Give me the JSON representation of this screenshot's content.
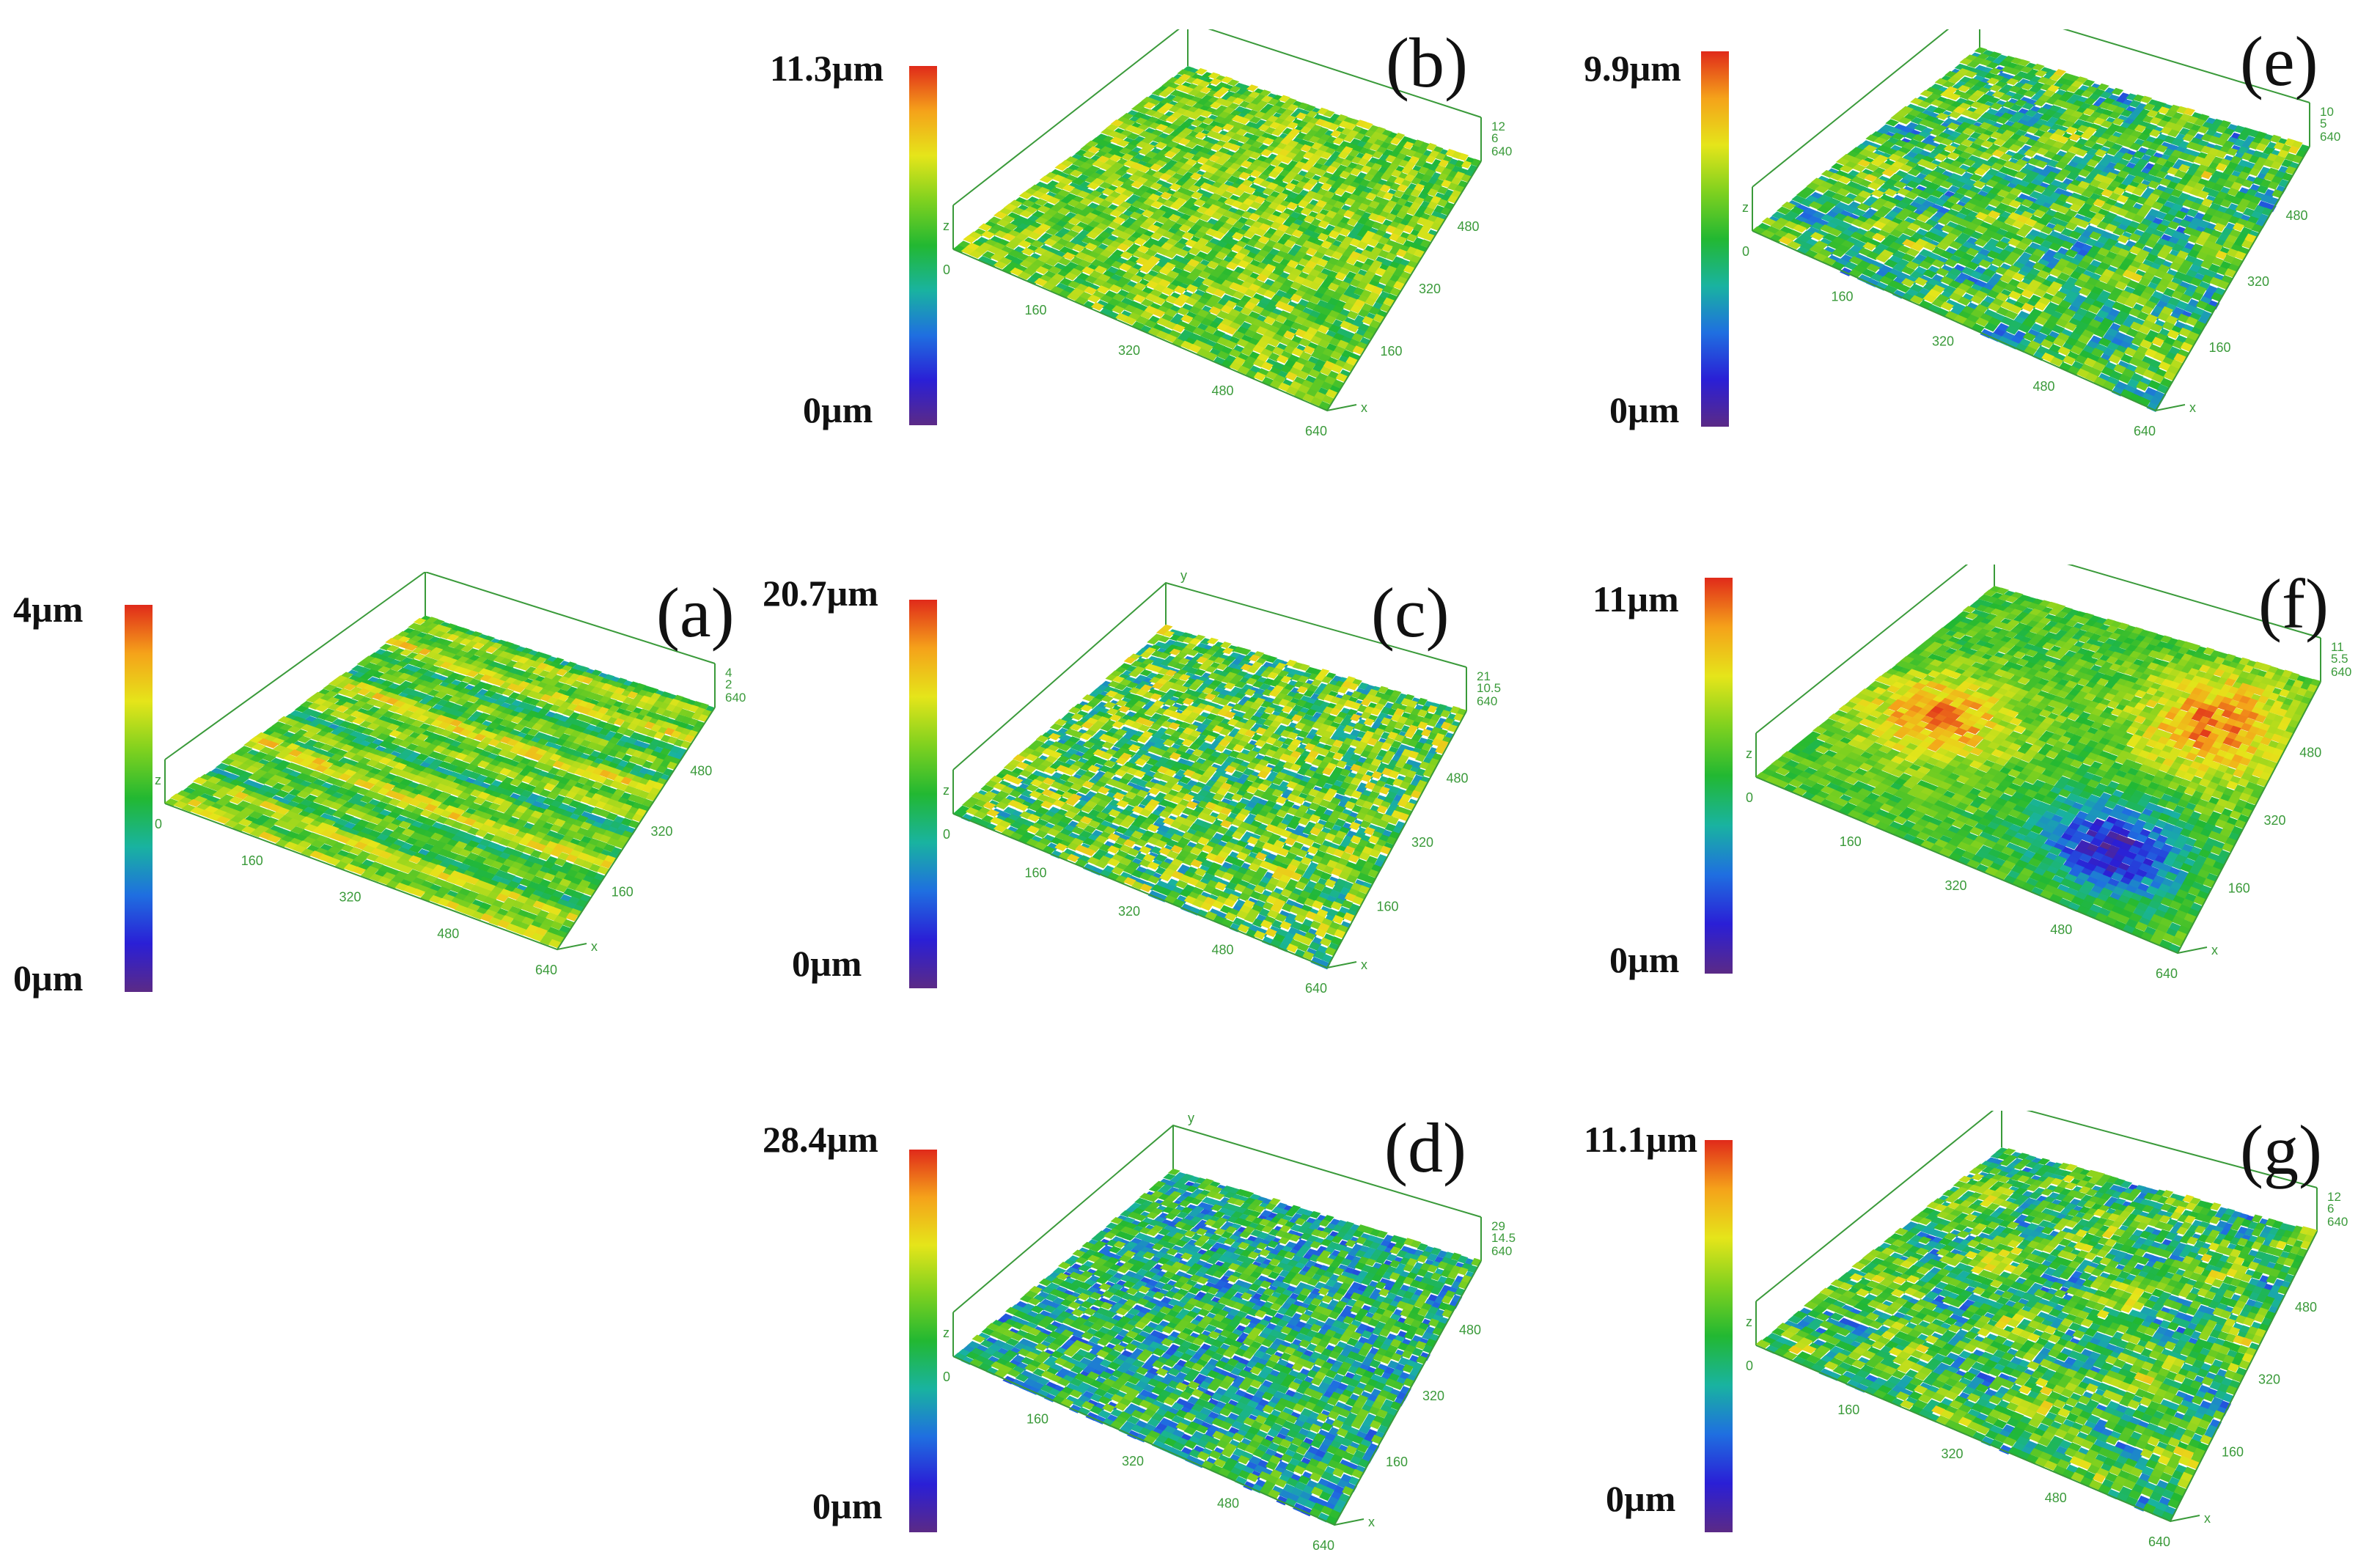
{
  "panels": [
    {
      "id": "a",
      "label": "(a)",
      "max": "4µm",
      "min": "0µm",
      "z": "z",
      "zmin": "0",
      "zticks": [
        "4",
        "2"
      ],
      "zmax": "640",
      "xticks": [
        "160",
        "320",
        "480",
        "640"
      ],
      "yticks": [
        "480",
        "320",
        "160"
      ],
      "xaxis": "x",
      "yaxis": "y",
      "pattern": "striped"
    },
    {
      "id": "b",
      "label": "(b)",
      "max": "11.3µm",
      "min": "0µm",
      "z": "z",
      "zmin": "0",
      "zticks": [
        "12",
        "6"
      ],
      "zmax": "640",
      "xticks": [
        "160",
        "320",
        "480",
        "640"
      ],
      "yticks": [
        "480",
        "320",
        "160"
      ],
      "xaxis": "x",
      "yaxis": "y",
      "pattern": "green"
    },
    {
      "id": "c",
      "label": "(c)",
      "max": "20.7µm",
      "min": "0µm",
      "z": "z",
      "zmin": "0",
      "zticks": [
        "21",
        "10.5"
      ],
      "zmax": "640",
      "xticks": [
        "160",
        "320",
        "480",
        "640"
      ],
      "yticks": [
        "480",
        "320",
        "160"
      ],
      "xaxis": "x",
      "yaxis": "y",
      "pattern": "spiky"
    },
    {
      "id": "d",
      "label": "(d)",
      "max": "28.4µm",
      "min": "0µm",
      "z": "z",
      "zmin": "0",
      "zticks": [
        "29",
        "14.5"
      ],
      "zmax": "640",
      "xticks": [
        "160",
        "320",
        "480",
        "640"
      ],
      "yticks": [
        "480",
        "320",
        "160"
      ],
      "xaxis": "x",
      "yaxis": "y",
      "pattern": "bluespiky"
    },
    {
      "id": "e",
      "label": "(e)",
      "max": "9.9µm",
      "min": "0µm",
      "z": "z",
      "zmin": "0",
      "zticks": [
        "10",
        "5"
      ],
      "zmax": "640",
      "xticks": [
        "160",
        "320",
        "480",
        "640"
      ],
      "yticks": [
        "480",
        "320",
        "160"
      ],
      "xaxis": "x",
      "yaxis": "y",
      "pattern": "mottled"
    },
    {
      "id": "f",
      "label": "(f)",
      "max": "11µm",
      "min": "0µm",
      "z": "z",
      "zmin": "0",
      "zticks": [
        "11",
        "5.5"
      ],
      "zmax": "640",
      "xticks": [
        "160",
        "320",
        "480",
        "640"
      ],
      "yticks": [
        "480",
        "320",
        "160"
      ],
      "xaxis": "x",
      "yaxis": "y",
      "pattern": "regions"
    },
    {
      "id": "g",
      "label": "(g)",
      "max": "11.1µm",
      "min": "0µm",
      "z": "z",
      "zmin": "0",
      "zticks": [
        "12",
        "6"
      ],
      "zmax": "640",
      "xticks": [
        "160",
        "320",
        "480",
        "640"
      ],
      "yticks": [
        "480",
        "320",
        "160"
      ],
      "xaxis": "x",
      "yaxis": "y",
      "pattern": "mottled"
    }
  ],
  "colors": {
    "axis": "#3a9a3a",
    "colormap": [
      "#5b2a86",
      "#2a1fd6",
      "#1f6fe0",
      "#19b3a0",
      "#22b832",
      "#7fd11f",
      "#e5e51a",
      "#f5a21a",
      "#e02a1a"
    ]
  }
}
